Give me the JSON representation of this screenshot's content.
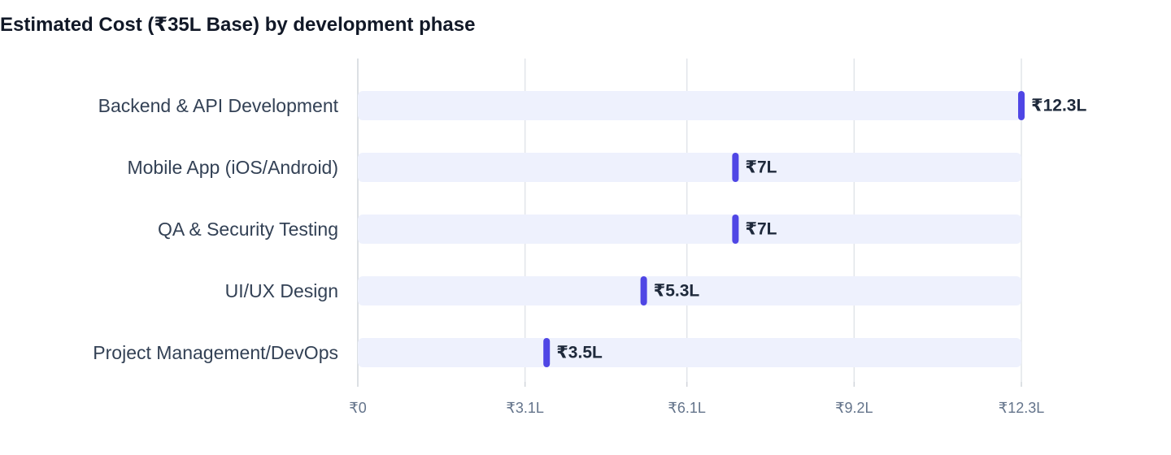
{
  "chart_data": {
    "type": "bar",
    "orientation": "horizontal",
    "title": "Estimated Cost (₹35L Base) by development phase",
    "categories": [
      "Backend & API Development",
      "Mobile App (iOS/Android)",
      "QA & Security Testing",
      "UI/UX Design",
      "Project Management/DevOps"
    ],
    "values": [
      12.3,
      7,
      7,
      5.3,
      3.5
    ],
    "value_labels": [
      "₹12.3L",
      "₹7L",
      "₹7L",
      "₹5.3L",
      "₹3.5L"
    ],
    "unit": "L (lakh ₹)",
    "xlim": [
      0,
      12.3
    ],
    "x_ticks": [
      0,
      3.1,
      6.1,
      9.2,
      12.3
    ],
    "x_tick_labels": [
      "₹0",
      "₹3.1L",
      "₹6.1L",
      "₹9.2L",
      "₹12.3L"
    ],
    "xlabel": "",
    "ylabel": "",
    "grid": true,
    "colors": {
      "track": "#eef1fd",
      "marker": "#4f46e5",
      "grid": "#e2e5ea",
      "axis": "#d1d5db"
    }
  }
}
